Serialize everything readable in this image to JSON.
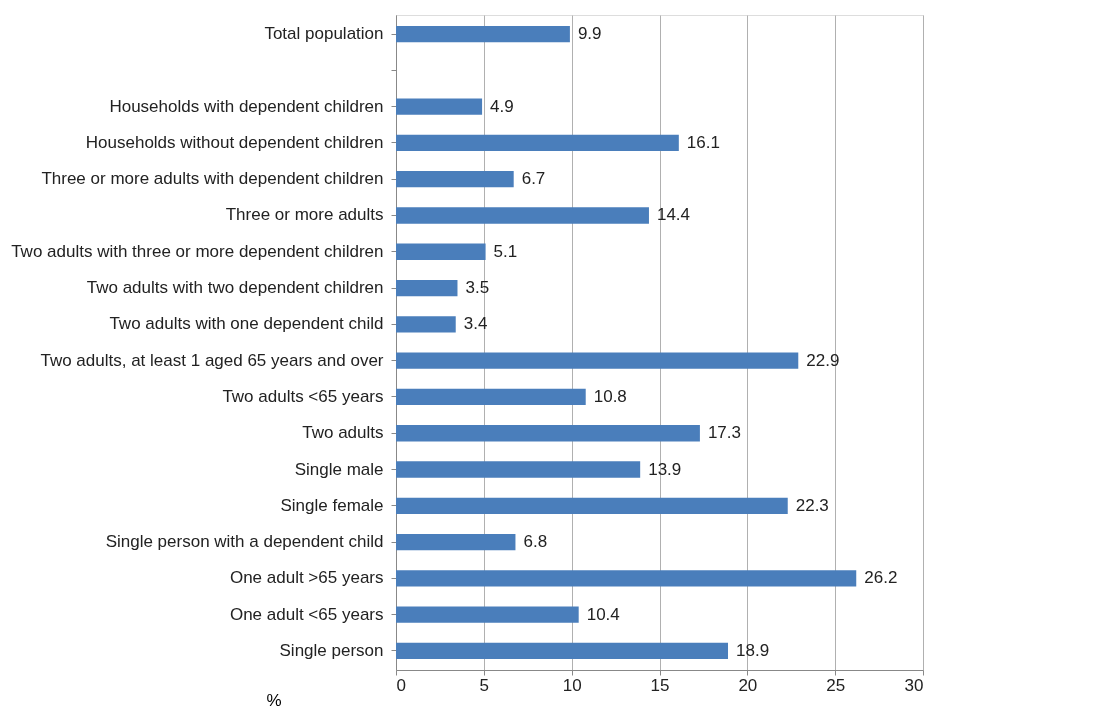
{
  "chart_data": {
    "type": "bar",
    "orientation": "horizontal",
    "xlabel": "%",
    "categories": [
      "Total population",
      null,
      "Households with dependent children",
      "Households without dependent children",
      "Three or more adults with dependent children",
      "Three or more adults",
      "Two adults with three or more dependent children",
      "Two adults with two dependent children",
      "Two adults with one dependent child",
      "Two adults, at least 1 aged 65 years and over",
      "Two adults <65 years",
      "Two adults",
      "Single male",
      "Single female",
      "Single person with a dependent child",
      "One adult >65 years",
      "One adult <65 years",
      "Single person"
    ],
    "values": [
      9.9,
      null,
      4.9,
      16.1,
      6.7,
      14.4,
      5.1,
      3.5,
      3.4,
      22.9,
      10.8,
      17.3,
      13.9,
      22.3,
      6.8,
      26.2,
      10.4,
      18.9
    ],
    "color": "#4a7ebb",
    "xlim": [
      0,
      30
    ],
    "xticks": [
      0,
      5,
      10,
      15,
      20,
      25,
      30
    ],
    "grid": "x",
    "data_labels": true
  }
}
